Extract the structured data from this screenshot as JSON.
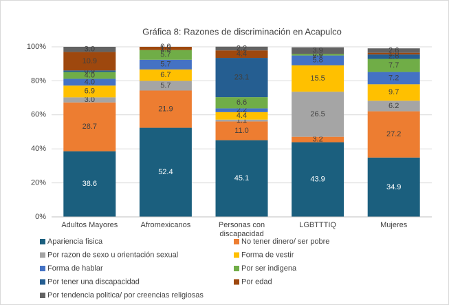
{
  "chart_data": {
    "type": "stacked_bar",
    "title": "Gráfica 8: Razones de discriminación en Acapulco",
    "categories": [
      "Adultos Mayores",
      "Afromexicanos",
      "Personas con discapacidad",
      "LGBTTTIQ",
      "Mujeres"
    ],
    "ylim": [
      0,
      100
    ],
    "yticks": [
      {
        "value": 0,
        "label": "0%"
      },
      {
        "value": 20,
        "label": "20%"
      },
      {
        "value": 40,
        "label": "40%"
      },
      {
        "value": 60,
        "label": "60%"
      },
      {
        "value": 80,
        "label": "80%"
      },
      {
        "value": 100,
        "label": "100%"
      }
    ],
    "grid": true,
    "legend": "bottom",
    "series": [
      {
        "name": "Apariencia fisica",
        "color": "#1b5f7e",
        "values": [
          38.6,
          52.4,
          45.1,
          43.9,
          34.9
        ],
        "value_labels": [
          "38.6",
          "52.4",
          "45.1",
          "43.9",
          "34.9"
        ]
      },
      {
        "name": "No tener dinero/ ser pobre",
        "color": "#ed7d31",
        "values": [
          28.7,
          21.9,
          11,
          3.2,
          27.2
        ],
        "value_labels": [
          "28.7",
          "21.9",
          "11.0",
          "3.2",
          "27.2"
        ]
      },
      {
        "name": "Por razon de sexo u orientación sexual",
        "color": "#a5a5a5",
        "values": [
          3,
          5.7,
          1.1,
          26.5,
          6.2
        ],
        "value_labels": [
          "3.0",
          "5.7",
          "1.1",
          "26.5",
          "6.2"
        ]
      },
      {
        "name": "Forma de vestir",
        "color": "#ffc000",
        "values": [
          6.9,
          6.7,
          4.4,
          15.5,
          9.7
        ],
        "value_labels": [
          "6.9",
          "6.7",
          "4.4",
          "15.5",
          "9.7"
        ]
      },
      {
        "name": "Forma de hablar",
        "color": "#4472c4",
        "values": [
          4,
          5.7,
          2.2,
          5.8,
          7.2
        ],
        "value_labels": [
          "4.0",
          "5.7",
          "2.2",
          "5.8",
          "7.2"
        ]
      },
      {
        "name": "Por ser indigena",
        "color": "#70ad47",
        "values": [
          4,
          5.7,
          6.6,
          0.9,
          7.7
        ],
        "value_labels": [
          "4.0",
          "5.7",
          "6.6",
          "0.9",
          "7.7"
        ]
      },
      {
        "name": "Por tener una discapacidad",
        "color": "#255e91",
        "values": [
          0.9,
          0,
          23.1,
          0,
          2.6
        ],
        "value_labels": [
          "0.9",
          "0.0",
          "23.1",
          "0.0",
          "2.6"
        ]
      },
      {
        "name": "Por edad",
        "color": "#9e480e",
        "values": [
          10.9,
          1.9,
          4.4,
          0,
          1
        ],
        "value_labels": [
          "10.9",
          "1.9",
          "4.4",
          "0.0",
          "1.0"
        ]
      },
      {
        "name": "Por tendencia politica/ por creencias religiosas",
        "color": "#636363",
        "values": [
          3,
          0,
          2.2,
          3.9,
          2.6
        ],
        "value_labels": [
          "3.0",
          "0.0",
          "2.2",
          "3.9",
          "2.6"
        ]
      }
    ]
  }
}
